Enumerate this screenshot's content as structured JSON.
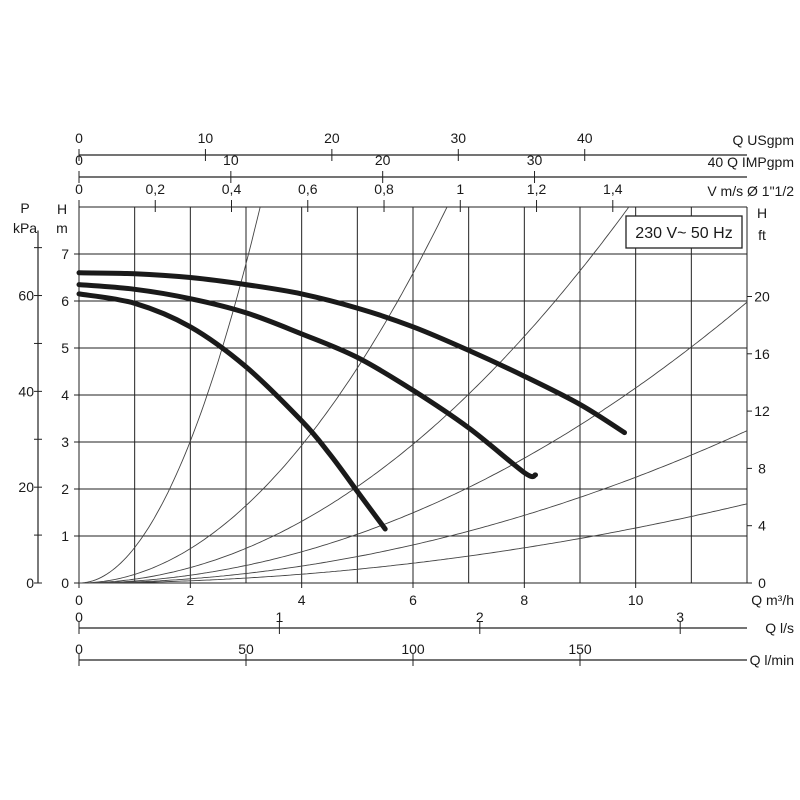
{
  "chart_data": {
    "type": "line",
    "badge": "230 V~ 50 Hz",
    "grid": true,
    "xlim": [
      0,
      12
    ],
    "ylim": [
      0,
      8
    ],
    "x_axis": {
      "unit": "Q m³/h",
      "ticks": [
        0,
        2,
        4,
        6,
        8,
        10
      ]
    },
    "y_axis_left": {
      "label": "H",
      "unit": "m",
      "ticks": [
        0,
        1,
        2,
        3,
        4,
        5,
        6,
        7
      ]
    },
    "y_axis_pressure": {
      "label": "P",
      "unit": "kPa",
      "ticks": [
        0,
        20,
        40,
        60
      ]
    },
    "y_axis_right": {
      "label": "H",
      "unit": "ft",
      "ticks": [
        0,
        4,
        8,
        12,
        16,
        20
      ]
    },
    "top_axes": [
      {
        "unit": "Q USgpm",
        "ticks": [
          "0",
          "10",
          "20",
          "30",
          "40"
        ],
        "values": [
          0,
          10,
          20,
          30,
          40
        ],
        "factor": 4.4029
      },
      {
        "unit": "40 Q IMPgpm",
        "ticks": [
          "0",
          "10",
          "20",
          "30"
        ],
        "values": [
          0,
          10,
          20,
          30
        ],
        "factor": 3.6661
      },
      {
        "unit": "V m/s Ø 1\"1/2",
        "ticks": [
          "0",
          "0,2",
          "0,4",
          "0,6",
          "0,8",
          "1",
          "1,2",
          "1,4"
        ],
        "values": [
          0,
          0.2,
          0.4,
          0.6,
          0.8,
          1.0,
          1.2,
          1.4
        ],
        "factor": 0.146
      }
    ],
    "bottom_axes": [
      {
        "unit": "Q l/s",
        "ticks": [
          "0",
          "1",
          "2",
          "3"
        ],
        "values": [
          0,
          1,
          2,
          3
        ],
        "factor": 3.6
      },
      {
        "unit": "Q l/min",
        "ticks": [
          "0",
          "50",
          "100",
          "150"
        ],
        "values": [
          0,
          50,
          100,
          150
        ],
        "factor": 0.06
      }
    ],
    "series": [
      {
        "x": [
          0,
          1,
          2,
          3,
          4,
          4.5,
          5,
          5.5
        ],
        "y": [
          6.15,
          5.95,
          5.45,
          4.6,
          3.45,
          2.75,
          1.95,
          1.15
        ]
      },
      {
        "x": [
          0,
          1,
          2,
          3,
          4,
          5,
          6,
          7,
          8,
          8.2
        ],
        "y": [
          6.35,
          6.25,
          6.05,
          5.75,
          5.3,
          4.8,
          4.1,
          3.3,
          2.35,
          2.3
        ]
      },
      {
        "x": [
          0,
          1,
          2,
          3,
          4,
          5,
          6,
          7,
          8,
          9,
          9.8
        ],
        "y": [
          6.6,
          6.58,
          6.5,
          6.35,
          6.15,
          5.85,
          5.45,
          4.95,
          4.4,
          3.8,
          3.2
        ]
      }
    ],
    "system_curves_k": [
      0.755,
      0.183,
      0.082,
      0.0415,
      0.0225,
      0.0117
    ]
  }
}
